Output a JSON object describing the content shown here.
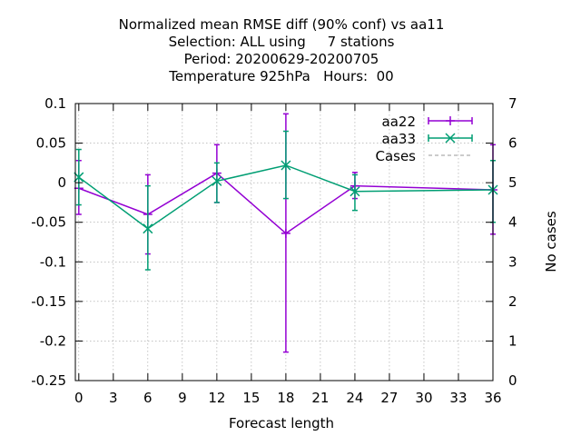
{
  "chart_data": {
    "type": "line",
    "title_lines": [
      "Normalized mean RMSE diff (90% conf) vs aa11",
      "Selection: ALL using     7 stations",
      "Period: 20200629-20200705",
      "Temperature 925hPa   Hours:  00"
    ],
    "xlabel": "Forecast length",
    "ylabel": "",
    "y2label": "No cases",
    "xlim": [
      -0.3,
      36
    ],
    "ylim": [
      -0.25,
      0.1
    ],
    "y2lim": [
      0,
      7
    ],
    "xticks": [
      "0",
      "3",
      "6",
      "9",
      "12",
      "15",
      "18",
      "21",
      "24",
      "27",
      "30",
      "33",
      "36"
    ],
    "yticks": [
      "0.1",
      "0.05",
      "0",
      "-0.05",
      "-0.1",
      "-0.15",
      "-0.2",
      "-0.25"
    ],
    "y2ticks": [
      "7",
      "6",
      "5",
      "4",
      "3",
      "2",
      "1",
      "0"
    ],
    "grid": true,
    "legend_position": "top-right",
    "series": [
      {
        "name": "aa22",
        "color": "#9400d3",
        "marker": "plus",
        "x": [
          0,
          6,
          12,
          18,
          24,
          36
        ],
        "y": [
          -0.007,
          -0.04,
          0.012,
          -0.064,
          -0.004,
          -0.009
        ],
        "err_low": [
          -0.04,
          -0.09,
          -0.025,
          -0.214,
          -0.02,
          -0.065
        ],
        "err_high": [
          0.028,
          0.01,
          0.048,
          0.087,
          0.013,
          0.048
        ]
      },
      {
        "name": "aa33",
        "color": "#009e73",
        "marker": "x",
        "x": [
          0,
          6,
          12,
          18,
          24,
          36
        ],
        "y": [
          0.007,
          -0.058,
          0.002,
          0.022,
          -0.011,
          -0.009
        ],
        "err_low": [
          -0.028,
          -0.11,
          -0.025,
          -0.02,
          -0.035,
          -0.05
        ],
        "err_high": [
          0.042,
          -0.004,
          0.025,
          0.065,
          0.01,
          0.028
        ]
      },
      {
        "name": "Cases",
        "color": "#999999",
        "axis": "y2",
        "x": [
          0,
          6,
          12,
          18,
          24,
          36
        ],
        "y": [
          7,
          7,
          7,
          7,
          7,
          7
        ]
      }
    ]
  }
}
